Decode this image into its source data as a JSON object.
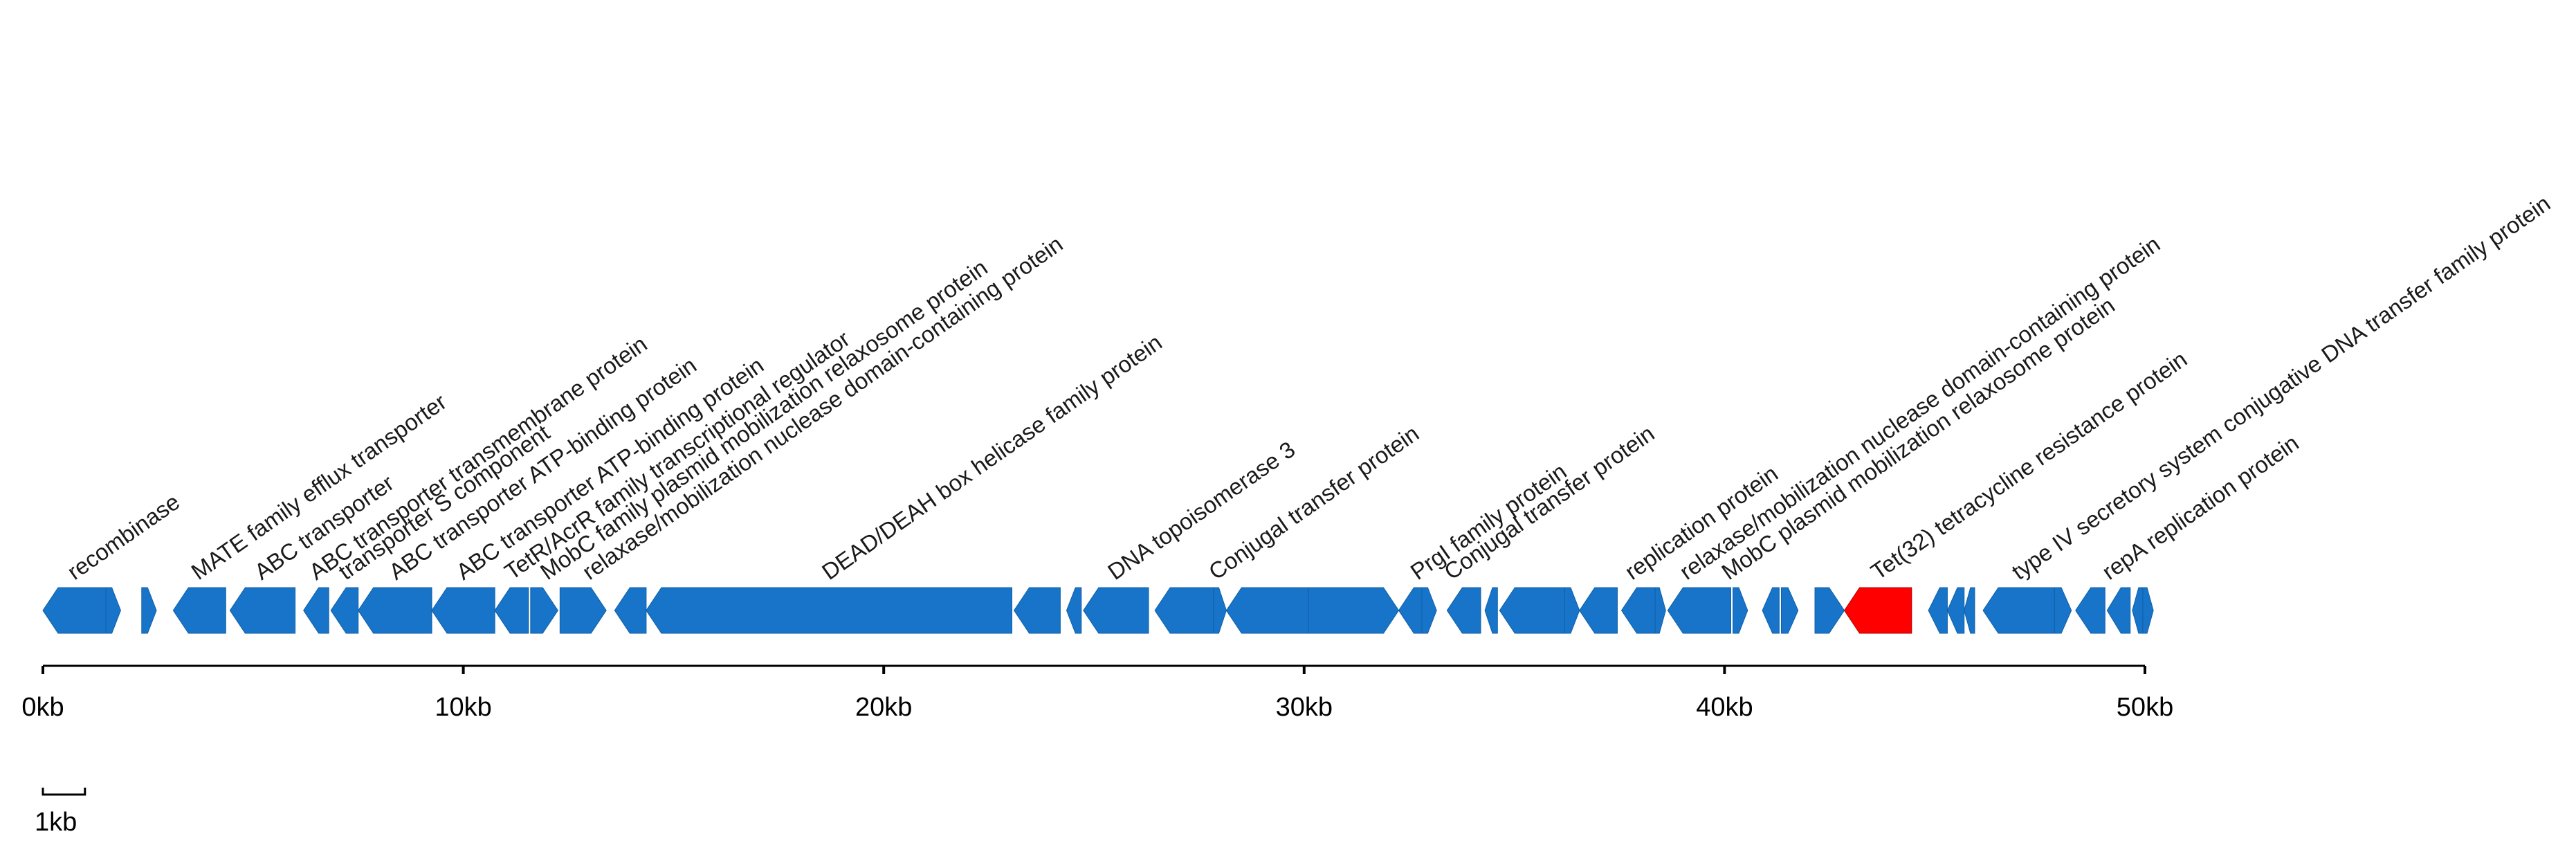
{
  "chart_data": {
    "type": "gene-map",
    "units": "kb",
    "colors": {
      "gene": "#1874c8",
      "highlight": "#ff0000",
      "axis": "#000000"
    },
    "axis": {
      "range": [
        0,
        50
      ],
      "ticks": [
        0,
        10,
        20,
        30,
        40,
        50
      ],
      "tick_labels": [
        "0kb",
        "10kb",
        "20kb",
        "30kb",
        "40kb",
        "50kb"
      ]
    },
    "scale_bar": {
      "length": 1,
      "label": "1kb"
    },
    "genes": [
      {
        "start": 0.0,
        "end": 1.5,
        "strand": -1
      },
      {
        "start": 1.5,
        "end": 1.85,
        "strand": 1
      },
      {
        "start": 2.35,
        "end": 2.7,
        "strand": 1
      },
      {
        "start": 3.1,
        "end": 4.35,
        "strand": -1
      },
      {
        "start": 4.45,
        "end": 6.0,
        "strand": -1
      },
      {
        "start": 6.2,
        "end": 6.8,
        "strand": -1
      },
      {
        "start": 6.85,
        "end": 7.5,
        "strand": -1
      },
      {
        "start": 7.5,
        "end": 9.25,
        "strand": -1
      },
      {
        "start": 9.25,
        "end": 10.75,
        "strand": -1
      },
      {
        "start": 10.75,
        "end": 11.55,
        "strand": -1
      },
      {
        "start": 11.6,
        "end": 12.25,
        "strand": 1
      },
      {
        "start": 12.3,
        "end": 13.4,
        "strand": 1
      },
      {
        "start": 13.6,
        "end": 14.35,
        "strand": -1
      },
      {
        "start": 14.35,
        "end": 23.05,
        "strand": -1
      },
      {
        "start": 23.1,
        "end": 24.2,
        "strand": -1
      },
      {
        "start": 24.35,
        "end": 24.7,
        "strand": -1
      },
      {
        "start": 24.75,
        "end": 26.3,
        "strand": -1
      },
      {
        "start": 26.45,
        "end": 27.85,
        "strand": -1
      },
      {
        "start": 27.85,
        "end": 28.15,
        "strand": 1
      },
      {
        "start": 28.15,
        "end": 30.1,
        "strand": -1
      },
      {
        "start": 30.1,
        "end": 32.25,
        "strand": 1
      },
      {
        "start": 32.25,
        "end": 32.85,
        "strand": -1
      },
      {
        "start": 32.8,
        "end": 33.15,
        "strand": 1
      },
      {
        "start": 33.4,
        "end": 34.2,
        "strand": -1
      },
      {
        "start": 34.3,
        "end": 34.6,
        "strand": -1
      },
      {
        "start": 34.65,
        "end": 36.2,
        "strand": -1
      },
      {
        "start": 36.2,
        "end": 36.55,
        "strand": 1
      },
      {
        "start": 36.55,
        "end": 37.45,
        "strand": -1
      },
      {
        "start": 37.55,
        "end": 38.35,
        "strand": -1
      },
      {
        "start": 38.35,
        "end": 38.6,
        "strand": 1
      },
      {
        "start": 38.65,
        "end": 40.15,
        "strand": -1
      },
      {
        "start": 40.2,
        "end": 40.55,
        "strand": 1
      },
      {
        "start": 40.9,
        "end": 41.3,
        "strand": -1
      },
      {
        "start": 41.35,
        "end": 41.75,
        "strand": 1
      },
      {
        "start": 42.15,
        "end": 42.85,
        "strand": 1
      },
      {
        "start": 42.85,
        "end": 44.45,
        "strand": -1,
        "highlight": true
      },
      {
        "start": 44.85,
        "end": 45.3,
        "strand": -1
      },
      {
        "start": 45.3,
        "end": 45.7,
        "strand": -1
      },
      {
        "start": 45.7,
        "end": 45.95,
        "strand": -1
      },
      {
        "start": 46.15,
        "end": 47.85,
        "strand": -1
      },
      {
        "start": 47.85,
        "end": 48.25,
        "strand": 1
      },
      {
        "start": 48.35,
        "end": 49.05,
        "strand": -1
      },
      {
        "start": 49.1,
        "end": 49.65,
        "strand": -1
      },
      {
        "start": 49.7,
        "end": 49.95,
        "strand": -1
      },
      {
        "start": 49.95,
        "end": 50.2,
        "strand": 1
      }
    ],
    "labels": [
      {
        "text": "recombinase",
        "pos": 0.75
      },
      {
        "text": "MATE family efflux transporter",
        "pos": 3.7
      },
      {
        "text": "ABC transporter",
        "pos": 5.2
      },
      {
        "text": "ABC transporter transmembrane protein",
        "pos": 6.5
      },
      {
        "text": "transporter S component",
        "pos": 7.2
      },
      {
        "text": "ABC transporter ATP-binding protein",
        "pos": 8.4
      },
      {
        "text": "ABC transporter ATP-binding protein",
        "pos": 10.0
      },
      {
        "text": "TetR/AcrR family transcriptional regulator",
        "pos": 11.15
      },
      {
        "text": "MobC family plasmid mobilization relaxosome protein",
        "pos": 12.0
      },
      {
        "text": "relaxase/mobilization nuclease domain-containing protein",
        "pos": 13.0
      },
      {
        "text": "DEAD/DEAH box helicase family protein",
        "pos": 18.7
      },
      {
        "text": "DNA topoisomerase 3",
        "pos": 25.5
      },
      {
        "text": "Conjugal transfer protein",
        "pos": 27.9
      },
      {
        "text": "PrgI family protein",
        "pos": 32.7
      },
      {
        "text": "Conjugal transfer protein",
        "pos": 33.5
      },
      {
        "text": "replication protein",
        "pos": 37.8
      },
      {
        "text": "relaxase/mobilization nuclease domain-containing protein",
        "pos": 39.1
      },
      {
        "text": "MobC plasmid mobilization relaxosome protein",
        "pos": 40.1
      },
      {
        "text": "Tet(32) tetracycline resistance protein",
        "pos": 43.65
      },
      {
        "text": "type IV secretory system conjugative DNA transfer family protein",
        "pos": 47.0
      },
      {
        "text": "repA replication protein",
        "pos": 49.15
      }
    ]
  }
}
